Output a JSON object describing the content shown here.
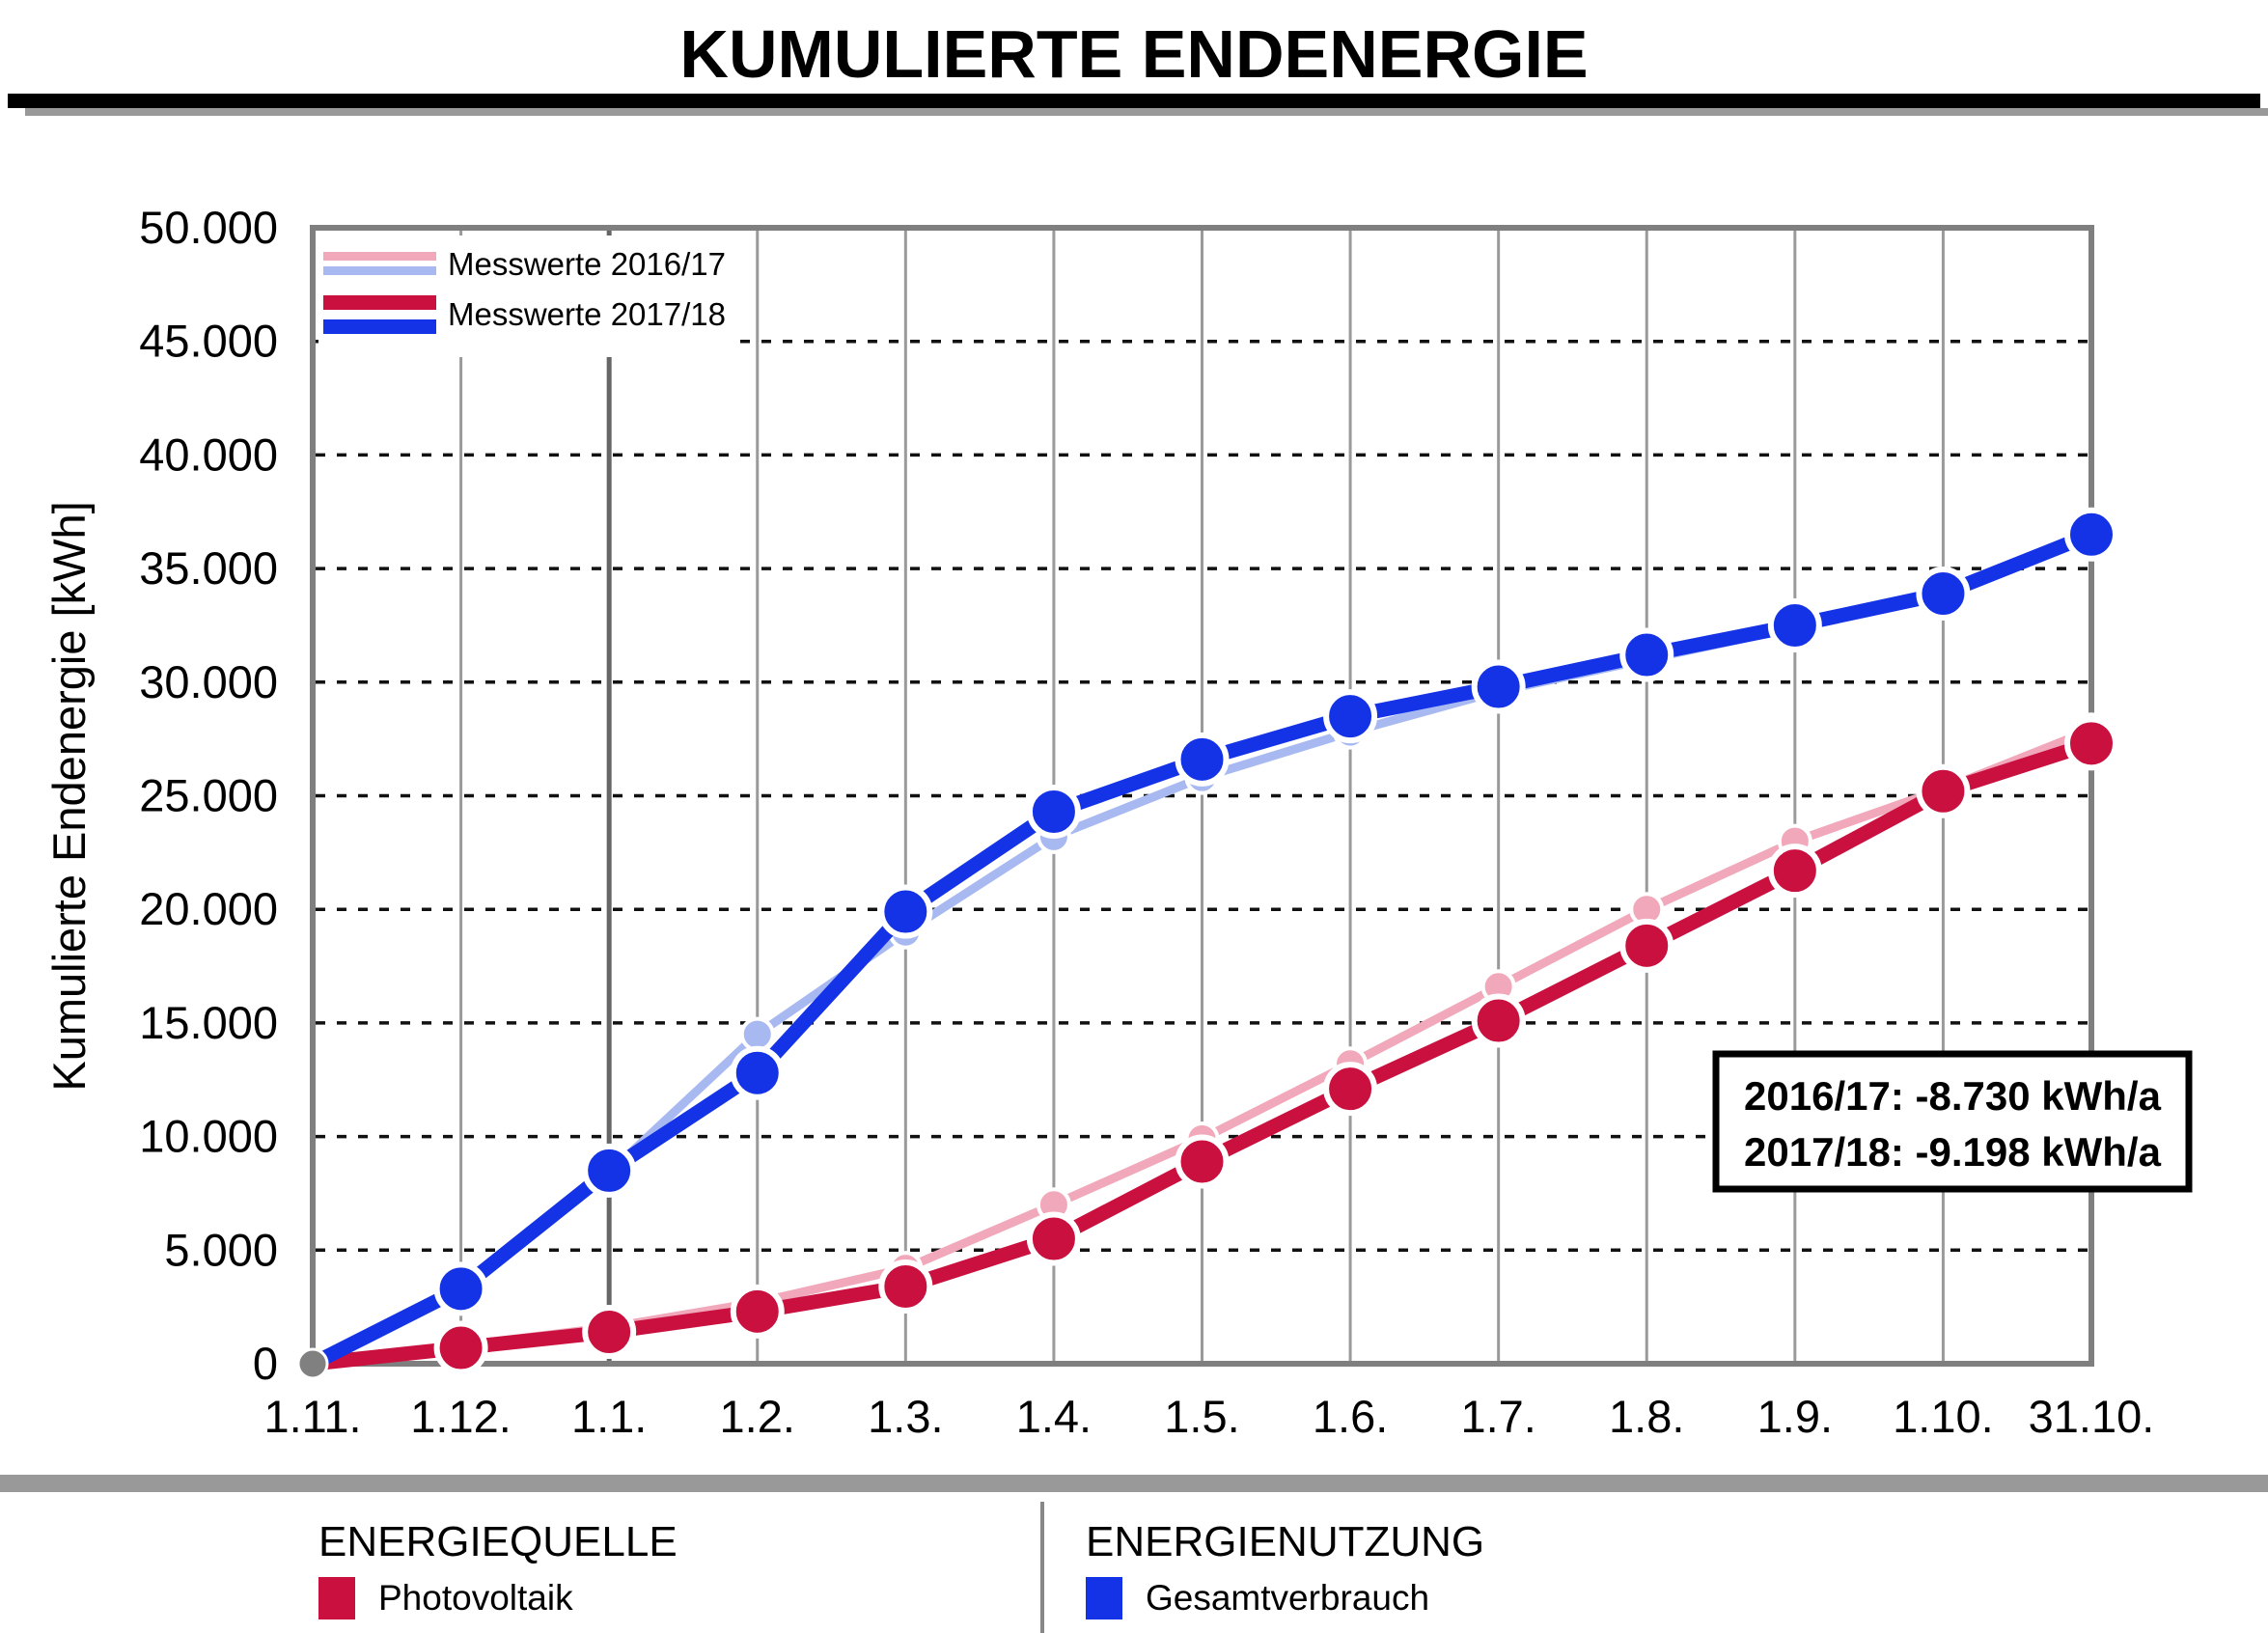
{
  "title": "KUMULIERTE ENDENERGIE",
  "legend": {
    "entries": [
      {
        "label": "Messwerte 2016/17"
      },
      {
        "label": "Messwerte 2017/18"
      }
    ]
  },
  "annotation": {
    "line1": "2016/17: -8.730 kWh/a",
    "line2": "2017/18: -9.198 kWh/a"
  },
  "footer": {
    "source_header": "ENERGIEQUELLE",
    "source_item": "Photovoltaik",
    "source_color": "#C9103F",
    "usage_header": "ENERGIENUTZUNG",
    "usage_item": "Gesamtverbrauch",
    "usage_color": "#1433E6",
    "bar_color": "#999999"
  },
  "chart_data": {
    "type": "line",
    "title": "KUMULIERTE ENDENERGIE",
    "ylabel": "Kumulierte Endenergie [kWh]",
    "xlabel": "",
    "ylim": [
      0,
      50000
    ],
    "ytick_step": 5000,
    "ytick_labels": [
      "0",
      "5.000",
      "10.000",
      "15.000",
      "20.000",
      "25.000",
      "30.000",
      "35.000",
      "40.000",
      "45.000",
      "50.000"
    ],
    "x_categories": [
      "1.11.",
      "1.12.",
      "1.1.",
      "1.2.",
      "1.3.",
      "1.4.",
      "1.5.",
      "1.6.",
      "1.7.",
      "1.8.",
      "1.9.",
      "1.10.",
      "31.10."
    ],
    "emphasis_gridline": "1.1.",
    "grid": "on",
    "legend_position": "top-left",
    "origin_dot_color": "#808080",
    "series": [
      {
        "name": "Messwerte 2016/17 Photovoltaik",
        "color": "#F0A8BA",
        "width": 9,
        "dot": 16,
        "values": [
          0,
          800,
          1600,
          2700,
          4200,
          7000,
          9900,
          13200,
          16600,
          20000,
          23000,
          25300,
          27900
        ]
      },
      {
        "name": "Messwerte 2016/17 Gesamtverbrauch",
        "color": "#A8B9F2",
        "width": 9,
        "dot": 16,
        "values": [
          0,
          3200,
          8400,
          14500,
          19000,
          23200,
          25800,
          27800,
          29600,
          31000,
          32400,
          33800,
          36700
        ]
      },
      {
        "name": "Messwerte 2017/18 Photovoltaik",
        "color": "#C9103F",
        "width": 15,
        "dot": 25,
        "values": [
          0,
          700,
          1400,
          2300,
          3400,
          5500,
          8900,
          12100,
          15100,
          18400,
          21700,
          25200,
          27300
        ]
      },
      {
        "name": "Messwerte 2017/18 Gesamtverbrauch",
        "color": "#1433E6",
        "width": 15,
        "dot": 25,
        "values": [
          0,
          3300,
          8500,
          12800,
          19900,
          24300,
          26600,
          28500,
          29800,
          31200,
          32500,
          33900,
          36500
        ]
      }
    ]
  }
}
